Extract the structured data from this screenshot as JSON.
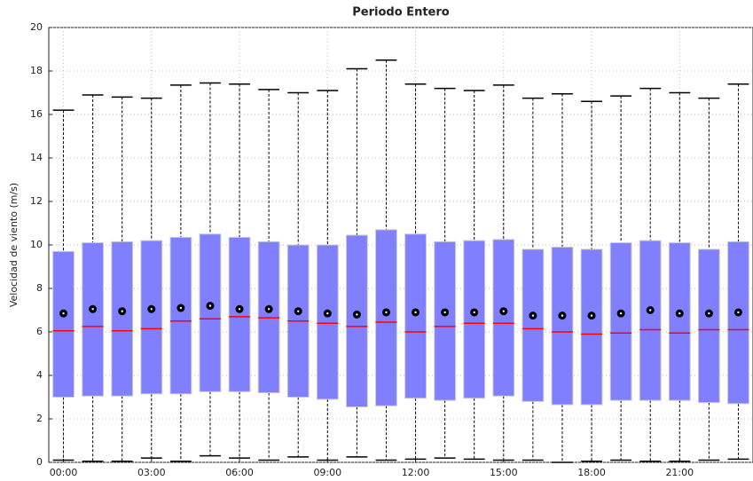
{
  "chart_data": {
    "type": "box",
    "title": "Periodo Entero",
    "y_label": "Velocidad de viento (m/s)",
    "categories": [
      "00:00",
      null,
      null,
      "03:00",
      null,
      null,
      "06:00",
      null,
      null,
      "09:00",
      null,
      null,
      "12:00",
      null,
      null,
      "15:00",
      null,
      null,
      "18:00",
      null,
      null,
      "21:00",
      null,
      null
    ],
    "whisker_high": [
      16.2,
      16.9,
      16.8,
      16.75,
      17.35,
      17.45,
      17.4,
      17.15,
      17.0,
      17.1,
      18.1,
      18.5,
      17.4,
      17.2,
      17.1,
      17.35,
      16.75,
      16.95,
      16.6,
      16.85,
      17.2,
      17.0,
      16.75,
      17.4
    ],
    "q3": [
      9.7,
      10.1,
      10.15,
      10.2,
      10.35,
      10.5,
      10.35,
      10.15,
      10.0,
      10.0,
      10.45,
      10.7,
      10.5,
      10.15,
      10.2,
      10.25,
      9.8,
      9.9,
      9.8,
      10.1,
      10.2,
      10.1,
      9.8,
      10.15
    ],
    "median": [
      6.05,
      6.25,
      6.05,
      6.15,
      6.5,
      6.6,
      6.7,
      6.65,
      6.5,
      6.4,
      6.25,
      6.45,
      6.0,
      6.25,
      6.4,
      6.4,
      6.15,
      6.0,
      5.9,
      5.95,
      6.1,
      5.95,
      6.1,
      6.1
    ],
    "q1": [
      3.0,
      3.05,
      3.05,
      3.15,
      3.15,
      3.25,
      3.25,
      3.2,
      3.0,
      2.9,
      2.55,
      2.6,
      2.95,
      2.85,
      2.95,
      3.05,
      2.8,
      2.65,
      2.65,
      2.85,
      2.85,
      2.85,
      2.75,
      2.7
    ],
    "whisker_low": [
      0.1,
      0.05,
      0.05,
      0.2,
      0.05,
      0.3,
      0.2,
      0.1,
      0.25,
      0.1,
      0.25,
      0.1,
      0.15,
      0.2,
      0.15,
      0.1,
      0.1,
      0.0,
      0.05,
      0.1,
      0.05,
      0.05,
      0.1,
      0.15
    ],
    "mean": [
      6.85,
      7.05,
      6.95,
      7.05,
      7.1,
      7.2,
      7.05,
      7.05,
      6.95,
      6.85,
      6.8,
      6.9,
      6.9,
      6.9,
      6.9,
      6.95,
      6.75,
      6.75,
      6.75,
      6.85,
      7.0,
      6.85,
      6.85,
      6.9
    ],
    "box_color": "#8080ff",
    "median_color": "#ff0000",
    "mean_color": "#000000",
    "ylim": [
      0,
      20
    ],
    "yticks": [
      0,
      2,
      4,
      6,
      8,
      10,
      12,
      14,
      16,
      18,
      20
    ],
    "grid": true
  }
}
